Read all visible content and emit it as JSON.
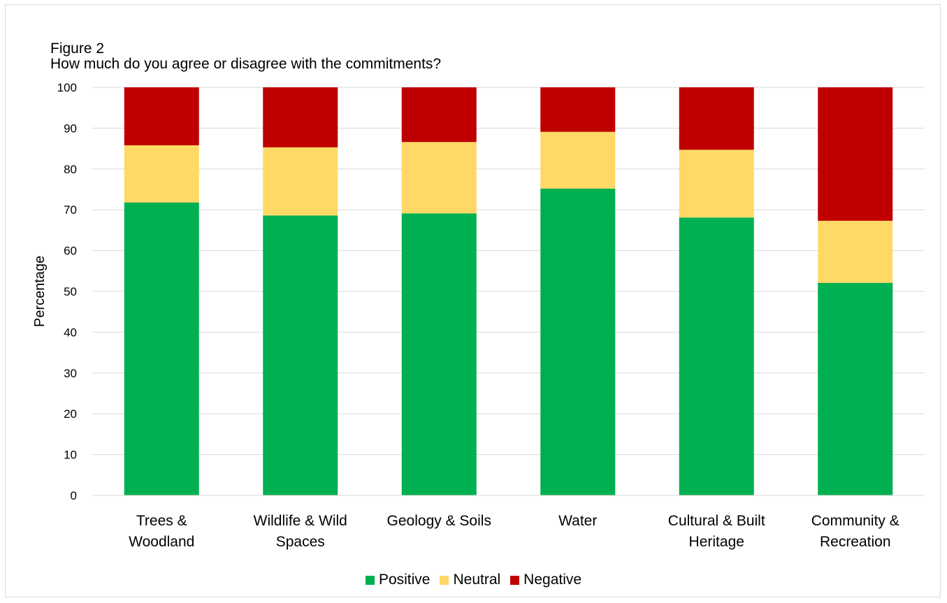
{
  "figure": {
    "label": "Figure 2",
    "title": "How much do you agree or disagree with the commitments?"
  },
  "chart_data": {
    "type": "bar",
    "stacked": true,
    "title": "How much do you agree or disagree with the commitments?",
    "xlabel": "",
    "ylabel": "Percentage",
    "ylim": [
      0,
      100
    ],
    "yticks": [
      "0",
      "10",
      "20",
      "30",
      "40",
      "50",
      "60",
      "70",
      "80",
      "90",
      "100"
    ],
    "grid": true,
    "legend_position": "bottom",
    "categories": [
      [
        "Trees &",
        "Woodland"
      ],
      [
        "Wildlife & Wild",
        "Spaces"
      ],
      [
        "Geology & Soils"
      ],
      [
        "Water"
      ],
      [
        "Cultural & Built",
        "Heritage"
      ],
      [
        "Community &",
        "Recreation"
      ]
    ],
    "series": [
      {
        "name": "Positive",
        "color": "#00b050",
        "values": [
          71.8,
          68.6,
          69.1,
          75.2,
          68.1,
          52.1
        ]
      },
      {
        "name": "Neutral",
        "color": "#ffd966",
        "values": [
          14.0,
          16.7,
          17.5,
          13.9,
          16.6,
          15.2
        ]
      },
      {
        "name": "Negative",
        "color": "#c00000",
        "values": [
          14.2,
          14.7,
          13.4,
          10.9,
          15.3,
          32.7
        ]
      }
    ]
  }
}
